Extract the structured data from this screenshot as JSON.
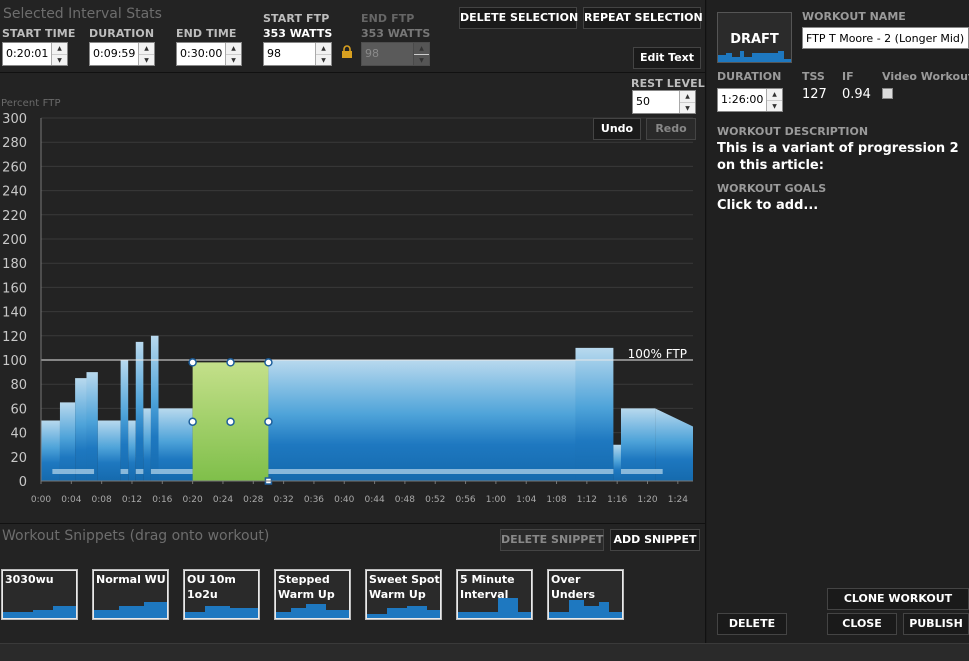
{
  "interval": {
    "title": "Selected Interval Stats",
    "start_time_label": "START TIME",
    "start_time": "0:20:01",
    "duration_label": "DURATION",
    "duration": "0:09:59",
    "end_time_label": "END TIME",
    "end_time": "0:30:00",
    "start_ftp_label": "START FTP",
    "start_ftp_watts": "353 WATTS",
    "start_ftp_value": "98",
    "end_ftp_label": "END FTP",
    "end_ftp_watts": "353 WATTS",
    "end_ftp_value": "98"
  },
  "toolbar": {
    "delete_selection": "DELETE SELECTION",
    "repeat_selection": "REPEAT SELECTION",
    "edit_text": "Edit Text",
    "rest_level_label": "REST LEVEL",
    "rest_level_value": "50",
    "undo": "Undo",
    "redo": "Redo"
  },
  "chart_data": {
    "type": "area",
    "ylabel": "Percent FTP",
    "ylim": [
      0,
      300
    ],
    "y_ticks": [
      "0",
      "20",
      "40",
      "60",
      "80",
      "100",
      "120",
      "140",
      "160",
      "180",
      "200",
      "220",
      "240",
      "260",
      "280",
      "300"
    ],
    "x_ticks": [
      "0:00",
      "0:04",
      "0:08",
      "0:12",
      "0:16",
      "0:20",
      "0:24",
      "0:28",
      "0:32",
      "0:36",
      "0:40",
      "0:44",
      "0:48",
      "0:52",
      "0:56",
      "1:00",
      "1:04",
      "1:08",
      "1:12",
      "1:16",
      "1:20",
      "1:24"
    ],
    "xlim_minutes": [
      0,
      86
    ],
    "ftp_line_label": "100% FTP",
    "ftp_line_value": 100,
    "segments": [
      {
        "start": 0,
        "end": 2.5,
        "from": 50,
        "to": 50
      },
      {
        "start": 2.5,
        "end": 4.5,
        "from": 65,
        "to": 65
      },
      {
        "start": 4.5,
        "end": 6,
        "from": 85,
        "to": 85
      },
      {
        "start": 6,
        "end": 7.5,
        "from": 90,
        "to": 90
      },
      {
        "start": 7.5,
        "end": 10.5,
        "from": 50,
        "to": 50
      },
      {
        "start": 10.5,
        "end": 11.5,
        "from": 100,
        "to": 100
      },
      {
        "start": 11.5,
        "end": 12.5,
        "from": 50,
        "to": 50
      },
      {
        "start": 12.5,
        "end": 13.5,
        "from": 115,
        "to": 115
      },
      {
        "start": 13.5,
        "end": 14.5,
        "from": 60,
        "to": 60
      },
      {
        "start": 14.5,
        "end": 15.5,
        "from": 120,
        "to": 120
      },
      {
        "start": 15.5,
        "end": 20,
        "from": 60,
        "to": 60
      },
      {
        "start": 20,
        "end": 30,
        "from": 98,
        "to": 98
      },
      {
        "start": 30,
        "end": 70.5,
        "from": 100,
        "to": 100
      },
      {
        "start": 70.5,
        "end": 75.5,
        "from": 110,
        "to": 110
      },
      {
        "start": 75.5,
        "end": 76.5,
        "from": 30,
        "to": 30
      },
      {
        "start": 76.5,
        "end": 81,
        "from": 60,
        "to": 60
      },
      {
        "start": 81,
        "end": 86,
        "from": 60,
        "to": 45
      }
    ],
    "selection": {
      "start": 20,
      "end": 30,
      "value": 98
    }
  },
  "snippets": {
    "title": "Workout Snippets (drag onto workout)",
    "delete_snippet": "DELETE SNIPPET",
    "add_snippet": "ADD SNIPPET",
    "items": [
      {
        "name": "3030wu"
      },
      {
        "name": "Normal WU"
      },
      {
        "name": "OU 10m 1o2u"
      },
      {
        "name": "Stepped Warm Up"
      },
      {
        "name": "Sweet Spot Warm Up"
      },
      {
        "name": "5 Minute Interval"
      },
      {
        "name": "Over Unders"
      }
    ]
  },
  "workout": {
    "draft_label": "DRAFT",
    "name_label": "WORKOUT NAME",
    "name_value": "FTP T Moore -  2  (Longer Mid)",
    "duration_label": "DURATION",
    "duration_value": "1:26:00",
    "tss_label": "TSS",
    "tss_value": "127",
    "if_label": "IF",
    "if_value": "0.94",
    "video_label": "Video Workout",
    "description_label": "WORKOUT DESCRIPTION",
    "description_value": "This is a variant of progression 2 on this article:",
    "goals_label": "WORKOUT GOALS",
    "goals_value": "Click to add...",
    "clone": "CLONE WORKOUT",
    "delete": "DELETE",
    "close": "CLOSE",
    "publish": "PUBLISH"
  },
  "colors": {
    "accent_blue": "#1e78c0",
    "light_blue": "#a8d0e8",
    "selection_green": "#9ccc55",
    "background": "#232323"
  }
}
